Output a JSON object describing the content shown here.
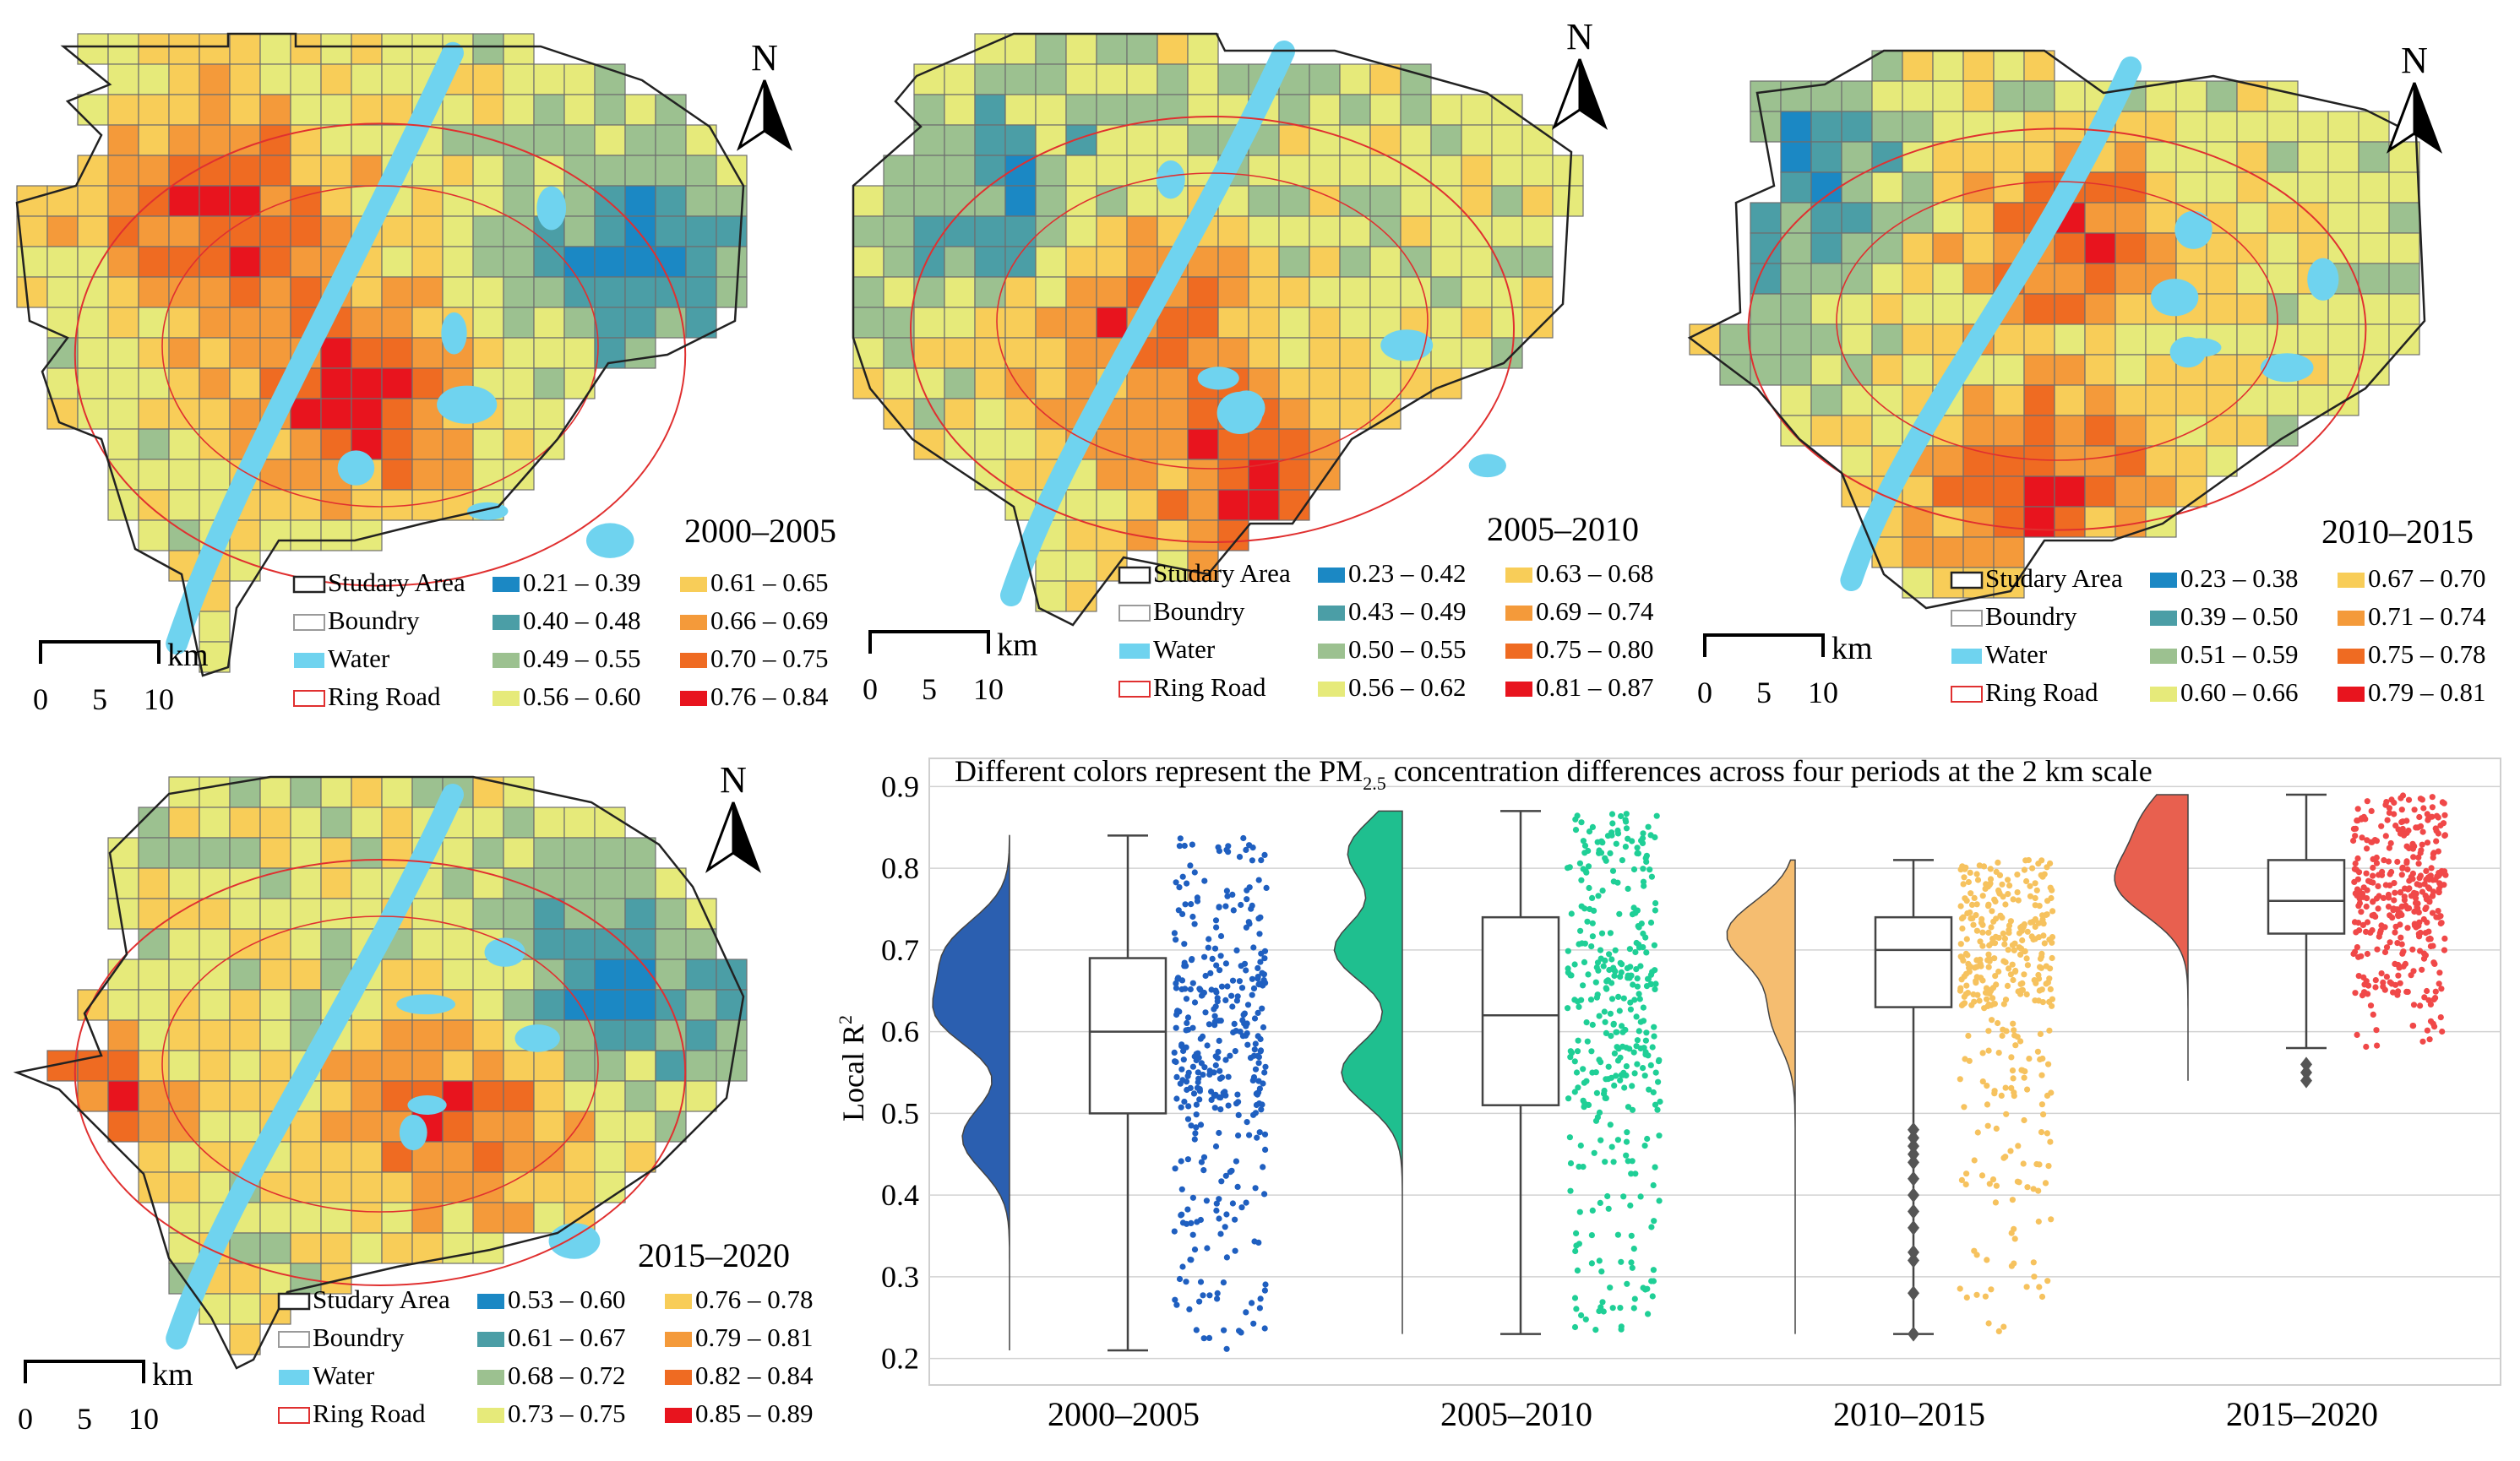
{
  "colors": {
    "study_area": "#222222",
    "boundary": "#9a9a9a",
    "water": "#6fd3ef",
    "ring_road": "#e03030"
  },
  "legend_common": [
    "Studary Area",
    "Boundry",
    "Water",
    "Ring Road"
  ],
  "scale_bar": {
    "unit": "km",
    "ticks": [
      "0",
      "5",
      "10"
    ]
  },
  "north_label": "N",
  "maps": [
    {
      "period": "2000–2005",
      "classes": [
        {
          "label": "0.21 – 0.39",
          "color": "#1b88c4"
        },
        {
          "label": "0.40 – 0.48",
          "color": "#4b9ea6"
        },
        {
          "label": "0.49 – 0.55",
          "color": "#9cc190"
        },
        {
          "label": "0.56 – 0.60",
          "color": "#e6ea7a"
        },
        {
          "label": "0.61 – 0.65",
          "color": "#f8cd58"
        },
        {
          "label": "0.66 – 0.69",
          "color": "#f49a3a"
        },
        {
          "label": "0.70 – 0.75",
          "color": "#ef6b22"
        },
        {
          "label": "0.76 – 0.84",
          "color": "#e8141e"
        }
      ]
    },
    {
      "period": "2005–2010",
      "classes": [
        {
          "label": "0.23 – 0.42",
          "color": "#1b88c4"
        },
        {
          "label": "0.43 – 0.49",
          "color": "#4b9ea6"
        },
        {
          "label": "0.50 – 0.55",
          "color": "#9cc190"
        },
        {
          "label": "0.56 – 0.62",
          "color": "#e6ea7a"
        },
        {
          "label": "0.63 – 0.68",
          "color": "#f8cd58"
        },
        {
          "label": "0.69 – 0.74",
          "color": "#f49a3a"
        },
        {
          "label": "0.75 – 0.80",
          "color": "#ef6b22"
        },
        {
          "label": "0.81 – 0.87",
          "color": "#e8141e"
        }
      ]
    },
    {
      "period": "2010–2015",
      "classes": [
        {
          "label": "0.23 – 0.38",
          "color": "#1b88c4"
        },
        {
          "label": "0.39 – 0.50",
          "color": "#4b9ea6"
        },
        {
          "label": "0.51 – 0.59",
          "color": "#9cc190"
        },
        {
          "label": "0.60 – 0.66",
          "color": "#e6ea7a"
        },
        {
          "label": "0.67 – 0.70",
          "color": "#f8cd58"
        },
        {
          "label": "0.71 – 0.74",
          "color": "#f49a3a"
        },
        {
          "label": "0.75 – 0.78",
          "color": "#ef6b22"
        },
        {
          "label": "0.79 – 0.81",
          "color": "#e8141e"
        }
      ]
    },
    {
      "period": "2015–2020",
      "classes": [
        {
          "label": "0.53 – 0.60",
          "color": "#1b88c4"
        },
        {
          "label": "0.61 – 0.67",
          "color": "#4b9ea6"
        },
        {
          "label": "0.68 – 0.72",
          "color": "#9cc190"
        },
        {
          "label": "0.73 – 0.75",
          "color": "#e6ea7a"
        },
        {
          "label": "0.76 – 0.78",
          "color": "#f8cd58"
        },
        {
          "label": "0.79 – 0.81",
          "color": "#f49a3a"
        },
        {
          "label": "0.82 – 0.84",
          "color": "#ef6b22"
        },
        {
          "label": "0.85 – 0.89",
          "color": "#e8141e"
        }
      ]
    }
  ],
  "chart_data": {
    "type": "raincloud",
    "title_prefix": "Different colors represent the PM",
    "title_subscript": "2.5",
    "title_suffix": " concentration differences across four periods at the 2 km scale",
    "ylabel_main": "Local R",
    "ylabel_sup": "2",
    "ylim": [
      0.18,
      0.92
    ],
    "yticks": [
      0.2,
      0.3,
      0.4,
      0.5,
      0.6,
      0.7,
      0.8,
      0.9
    ],
    "ytick_labels": [
      "0.2",
      "0.3",
      "0.4",
      "0.5",
      "0.6",
      "0.7",
      "0.8",
      "0.9"
    ],
    "grid": true,
    "categories": [
      "2000–2005",
      "2005–2010",
      "2010–2015",
      "2015–2020"
    ],
    "series": [
      {
        "name": "2000–2005",
        "color": "#2b5fb0",
        "point_color": "#1f5fc0",
        "min": 0.21,
        "q1": 0.5,
        "median": 0.6,
        "q3": 0.69,
        "max": 0.84,
        "kde_peaks": [
          [
            0.62,
            1.0
          ],
          [
            0.7,
            0.85
          ],
          [
            0.47,
            0.7
          ]
        ],
        "outliers": []
      },
      {
        "name": "2005–2010",
        "color": "#1fbf8f",
        "point_color": "#1fcf96",
        "min": 0.23,
        "q1": 0.51,
        "median": 0.62,
        "q3": 0.74,
        "max": 0.87,
        "kde_peaks": [
          [
            0.7,
            1.0
          ],
          [
            0.55,
            0.9
          ],
          [
            0.82,
            0.8
          ]
        ],
        "outliers": []
      },
      {
        "name": "2010–2015",
        "color": "#f5bd70",
        "point_color": "#f6c25e",
        "min": 0.23,
        "q1": 0.63,
        "median": 0.7,
        "q3": 0.74,
        "max": 0.81,
        "kde_peaks": [
          [
            0.72,
            1.0
          ],
          [
            0.62,
            0.35
          ]
        ],
        "outliers": [
          0.48,
          0.47,
          0.46,
          0.45,
          0.44,
          0.42,
          0.4,
          0.38,
          0.36,
          0.33,
          0.32,
          0.28,
          0.23
        ]
      },
      {
        "name": "2015–2020",
        "color": "#e8604f",
        "point_color": "#f04848",
        "min": 0.58,
        "q1": 0.72,
        "median": 0.76,
        "q3": 0.81,
        "max": 0.89,
        "kde_peaks": [
          [
            0.78,
            1.0
          ],
          [
            0.86,
            0.6
          ]
        ],
        "outliers": [
          0.56,
          0.55,
          0.54
        ]
      }
    ]
  }
}
